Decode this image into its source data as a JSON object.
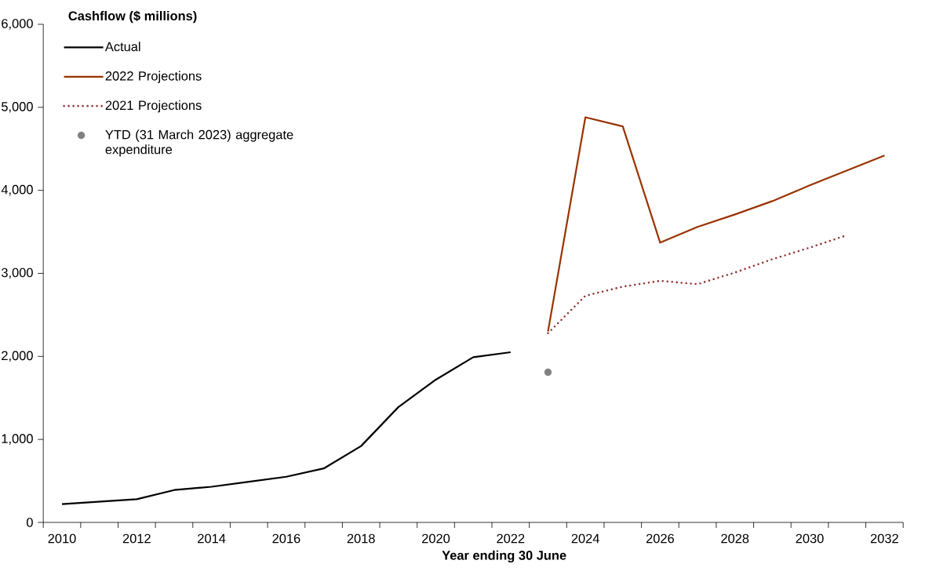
{
  "chart_data": {
    "type": "line",
    "xlabel": "Year ending 30 June",
    "ylabel": "Cashflow ($ millions)",
    "categories": [
      "2010",
      null,
      "2012",
      null,
      "2014",
      null,
      "2016",
      null,
      "2018",
      null,
      "2020",
      null,
      "2022",
      null,
      "2024",
      null,
      "2026",
      null,
      "2028",
      null,
      "2030",
      null,
      "2032"
    ],
    "series": [
      {
        "name": "Actual",
        "color": "#000000",
        "line_style": "solid",
        "values": [
          220,
          250,
          280,
          390,
          430,
          490,
          550,
          650,
          920,
          1390,
          1720,
          1990,
          2050,
          null,
          null,
          null,
          null,
          null,
          null,
          null,
          null,
          null,
          null
        ]
      },
      {
        "name": "2022 Projections",
        "color": "#993300",
        "line_style": "solid",
        "values": [
          null,
          null,
          null,
          null,
          null,
          null,
          null,
          null,
          null,
          null,
          null,
          null,
          null,
          2300,
          4880,
          4770,
          3370,
          3560,
          3710,
          3870,
          4060,
          4240,
          4420
        ]
      },
      {
        "name": "2021 Projections",
        "color": "#943634",
        "line_style": "dotted",
        "values": [
          null,
          null,
          null,
          null,
          null,
          null,
          null,
          null,
          null,
          null,
          null,
          null,
          null,
          2280,
          2730,
          2840,
          2910,
          2870,
          3010,
          3170,
          3310,
          3460,
          null
        ]
      },
      {
        "name": "YTD (31 March 2023) aggregate expenditure",
        "type": "scatter",
        "marker": "circle",
        "color": "#808080",
        "values": [
          null,
          null,
          null,
          null,
          null,
          null,
          null,
          null,
          null,
          null,
          null,
          null,
          null,
          1810,
          null,
          null,
          null,
          null,
          null,
          null,
          null,
          null,
          null
        ]
      }
    ],
    "ylim": [
      0,
      6000
    ],
    "yticks": [
      0,
      {
        "value": 1000,
        "label": "1,000"
      },
      {
        "value": 2000,
        "label": "2,000"
      },
      {
        "value": 3000,
        "label": "3,000"
      },
      {
        "value": 4000,
        "label": "4,000"
      },
      {
        "value": 5000,
        "label": "5,000"
      },
      {
        "value": 6000,
        "label": "6,000"
      }
    ],
    "legend": "top left"
  }
}
